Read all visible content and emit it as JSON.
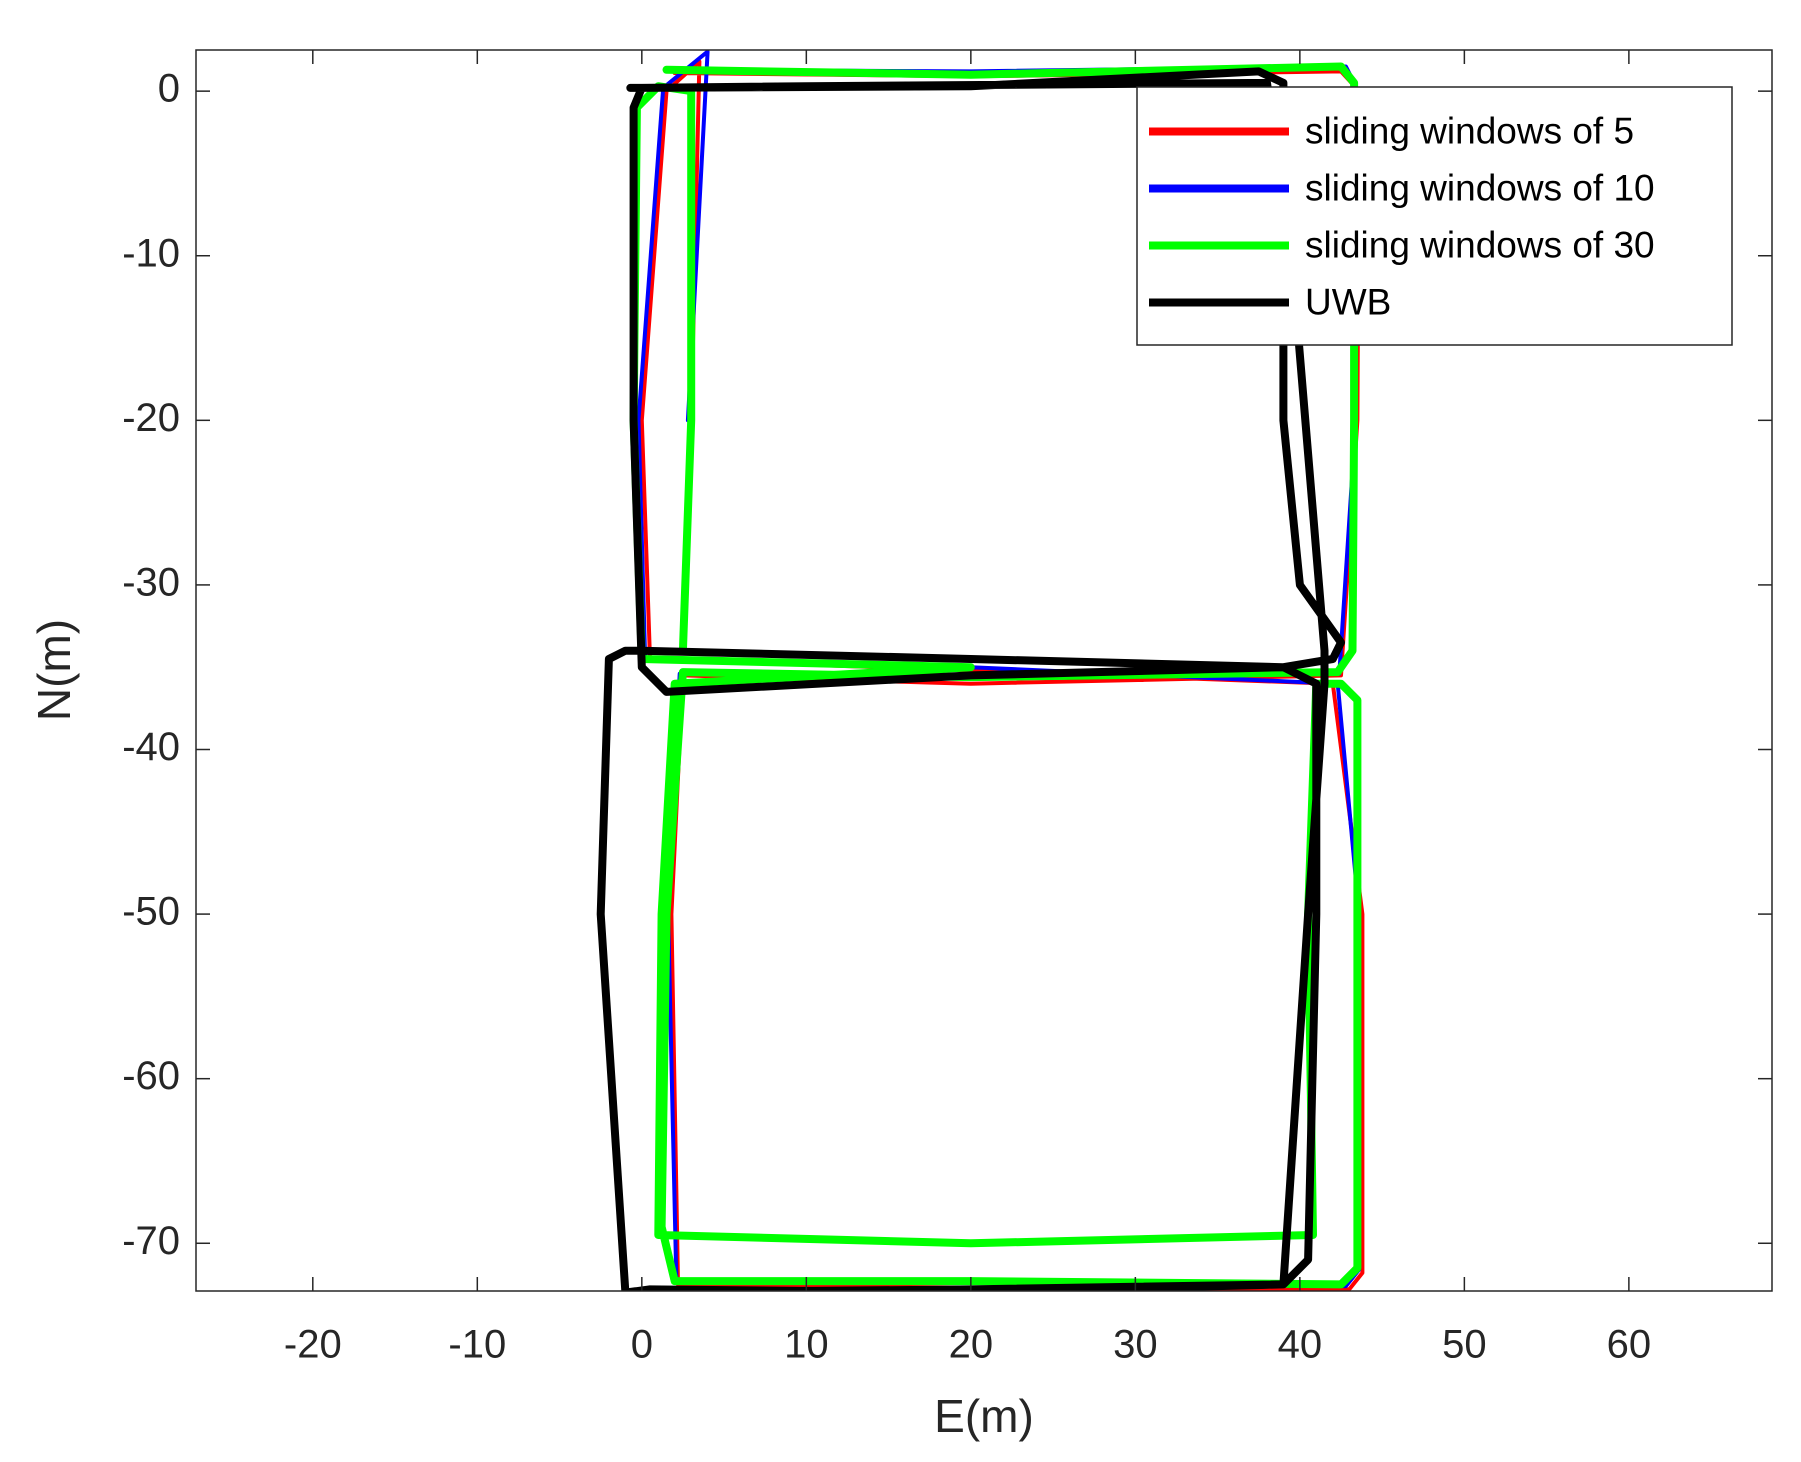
{
  "chart_data": {
    "type": "line",
    "x_label": "E(m)",
    "y_label": "N(m)",
    "xlim": [
      -27.1,
      68.7
    ],
    "ylim": [
      -72.9,
      2.5
    ],
    "xticks": [
      -20,
      -10,
      0,
      10,
      20,
      30,
      40,
      50,
      60
    ],
    "yticks": [
      -70,
      -60,
      -50,
      -40,
      -30,
      -20,
      -10,
      0
    ],
    "grid": false,
    "legend_location": "upper right",
    "series": [
      {
        "name": "sliding windows of 5",
        "color": "#ff0000",
        "x": [
          2,
          20,
          42.5,
          43.6,
          43.5,
          42.5,
          20,
          2.5,
          1.8,
          2.2,
          20,
          43,
          43.8,
          43.8,
          42,
          20,
          0.5,
          0,
          1.5,
          3.5,
          3
        ],
        "values": [
          1.1,
          0.9,
          1.2,
          0,
          -20,
          -35.5,
          -36,
          -35.5,
          -50,
          -72.5,
          -72.7,
          -72.8,
          -71.8,
          -50,
          -36,
          -35.2,
          -34.5,
          -20,
          0,
          1.8,
          -20
        ]
      },
      {
        "name": "sliding windows of 10",
        "color": "#0000ff",
        "x": [
          2.5,
          20,
          42.8,
          43.4,
          43.4,
          42.4,
          20,
          2.3,
          1.6,
          2.1,
          20,
          42.8,
          43.6,
          43.6,
          42.3,
          20,
          0.2,
          -0.2,
          1.3,
          4,
          2.8
        ],
        "values": [
          1.3,
          1.2,
          1.5,
          0.3,
          -20,
          -35.4,
          -35.7,
          -35.4,
          -50,
          -72.4,
          -72.4,
          -72.6,
          -71.6,
          -50,
          -36,
          -35,
          -34.4,
          -20,
          0.2,
          2.4,
          -20
        ]
      },
      {
        "name": "sliding windows of 30",
        "color": "#00ff00",
        "x": [
          1.5,
          20,
          42.5,
          43.3,
          43.3,
          43.2,
          42.3,
          20,
          2.5,
          1.5,
          1.2,
          2,
          20,
          42.5,
          43.5,
          43.5,
          43.5,
          42.5,
          41,
          40.5,
          40.8,
          20,
          1,
          1.2,
          2,
          20,
          0,
          -0.5,
          -0.3,
          1,
          3,
          3,
          2.5
        ],
        "values": [
          1.3,
          1.0,
          1.5,
          0.5,
          -20,
          -34,
          -35.3,
          -35.6,
          -35.3,
          -50,
          -69,
          -72.3,
          -72.3,
          -72.5,
          -71.5,
          -50,
          -37,
          -36,
          -36,
          -50,
          -69.5,
          -70,
          -69.5,
          -50,
          -36,
          -35,
          -34.5,
          -20,
          -1,
          0.3,
          0,
          -20,
          -34
        ]
      },
      {
        "name": "UWB",
        "color": "#000000",
        "x": [
          -0.7,
          20,
          37.5,
          39,
          39,
          40,
          42.5,
          42,
          39,
          20,
          1.5,
          0,
          -0.5,
          -0.5,
          0,
          10,
          38,
          39.5,
          41.5,
          41.5,
          40.5,
          39,
          20,
          0.5,
          -1,
          -2.5,
          -2,
          -1,
          0,
          20,
          39,
          41,
          41,
          40.5,
          39,
          20,
          0
        ],
        "values": [
          0.2,
          0.3,
          1.2,
          0.5,
          -20,
          -30,
          -33.5,
          -34.5,
          -35,
          -35.5,
          -36.5,
          -35,
          -20,
          -1,
          0.2,
          0.3,
          0.5,
          -10,
          -34,
          -36,
          -50,
          -72.5,
          -73,
          -72.8,
          -73,
          -50,
          -34.5,
          -34,
          -34,
          -34.5,
          -35,
          -36,
          -50,
          -71,
          -72.5,
          -72.8,
          -73
        ]
      }
    ]
  }
}
